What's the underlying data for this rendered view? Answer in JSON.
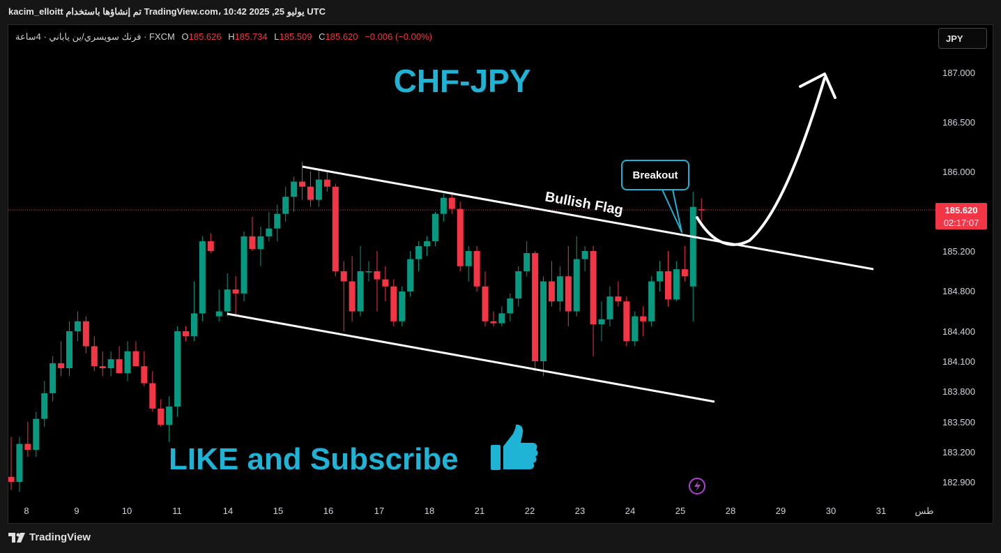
{
  "header": {
    "publish_info": "kacim_elloitt تم إنشاؤها باستخدام TradingView.com، 10:42 2025 ,25 يوليو UTC"
  },
  "legend": {
    "symbol": "فرنك سويسري/ين ياباني · 4ساعة · FXCM",
    "open_label": "O",
    "open": "185.626",
    "high_label": "H",
    "high": "185.734",
    "low_label": "L",
    "low": "185.509",
    "close_label": "C",
    "close": "185.620",
    "change": "−0.006 (−0.00%)"
  },
  "currency_button": "JPY",
  "price_axis": {
    "ticks": [
      "187.000",
      "186.500",
      "186.000",
      "185.200",
      "184.800",
      "184.400",
      "184.100",
      "183.800",
      "183.500",
      "183.200",
      "182.900"
    ],
    "current_price": "185.620",
    "countdown": "02:17:07"
  },
  "time_axis": {
    "ticks": [
      "8",
      "9",
      "10",
      "11",
      "14",
      "15",
      "16",
      "17",
      "18",
      "21",
      "22",
      "23",
      "24",
      "25",
      "28",
      "29",
      "30",
      "31",
      "طس"
    ]
  },
  "annotations": {
    "title": "CHF-JPY",
    "pattern": "Bullish Flag",
    "callout": "Breakout",
    "cta": "LIKE and Subscribe"
  },
  "footer": {
    "brand": "TradingView"
  },
  "colors": {
    "up": "#089981",
    "down": "#f23645",
    "accent": "#1fb3d5",
    "background": "#000000"
  },
  "chart_data": {
    "type": "candlestick",
    "symbol": "CHF/JPY",
    "timeframe": "4H",
    "yaxis_ticks": [
      187.0,
      186.5,
      186.0,
      185.2,
      184.8,
      184.4,
      184.1,
      183.8,
      183.5,
      183.2,
      182.9
    ],
    "current_price": 185.62,
    "candles": [
      {
        "o": 182.95,
        "h": 183.35,
        "l": 182.82,
        "c": 182.9
      },
      {
        "o": 182.9,
        "h": 183.35,
        "l": 182.8,
        "c": 183.28
      },
      {
        "o": 183.28,
        "h": 183.5,
        "l": 183.15,
        "c": 183.22
      },
      {
        "o": 183.22,
        "h": 183.6,
        "l": 183.15,
        "c": 183.53
      },
      {
        "o": 183.53,
        "h": 183.9,
        "l": 183.45,
        "c": 183.78
      },
      {
        "o": 183.78,
        "h": 184.15,
        "l": 183.7,
        "c": 184.08
      },
      {
        "o": 184.08,
        "h": 184.3,
        "l": 183.95,
        "c": 184.03
      },
      {
        "o": 184.03,
        "h": 184.5,
        "l": 183.95,
        "c": 184.4
      },
      {
        "o": 184.4,
        "h": 184.6,
        "l": 184.3,
        "c": 184.5
      },
      {
        "o": 184.5,
        "h": 184.55,
        "l": 184.18,
        "c": 184.25
      },
      {
        "o": 184.25,
        "h": 184.35,
        "l": 184.0,
        "c": 184.05
      },
      {
        "o": 184.05,
        "h": 184.2,
        "l": 183.95,
        "c": 184.03
      },
      {
        "o": 184.03,
        "h": 184.2,
        "l": 183.95,
        "c": 184.12
      },
      {
        "o": 184.12,
        "h": 184.25,
        "l": 183.98,
        "c": 183.98
      },
      {
        "o": 183.98,
        "h": 184.3,
        "l": 183.9,
        "c": 184.2
      },
      {
        "o": 184.2,
        "h": 184.3,
        "l": 184.05,
        "c": 184.05
      },
      {
        "o": 184.05,
        "h": 184.2,
        "l": 183.85,
        "c": 183.88
      },
      {
        "o": 183.88,
        "h": 184.0,
        "l": 183.6,
        "c": 183.63
      },
      {
        "o": 183.63,
        "h": 183.72,
        "l": 183.45,
        "c": 183.47
      },
      {
        "o": 183.47,
        "h": 183.75,
        "l": 183.3,
        "c": 183.65
      },
      {
        "o": 183.65,
        "h": 184.45,
        "l": 183.55,
        "c": 184.4
      },
      {
        "o": 184.4,
        "h": 184.45,
        "l": 184.3,
        "c": 184.35
      },
      {
        "o": 184.35,
        "h": 184.9,
        "l": 184.3,
        "c": 184.58
      },
      {
        "o": 184.58,
        "h": 185.35,
        "l": 184.5,
        "c": 185.3
      },
      {
        "o": 185.3,
        "h": 185.38,
        "l": 185.18,
        "c": 185.2
      },
      {
        "o": 184.55,
        "h": 184.82,
        "l": 184.5,
        "c": 184.6
      },
      {
        "o": 184.6,
        "h": 184.98,
        "l": 184.55,
        "c": 184.82
      },
      {
        "o": 184.82,
        "h": 184.95,
        "l": 184.55,
        "c": 184.78
      },
      {
        "o": 184.78,
        "h": 185.4,
        "l": 184.7,
        "c": 185.35
      },
      {
        "o": 185.35,
        "h": 185.55,
        "l": 185.2,
        "c": 185.22
      },
      {
        "o": 185.22,
        "h": 185.45,
        "l": 185.05,
        "c": 185.35
      },
      {
        "o": 185.35,
        "h": 185.6,
        "l": 185.3,
        "c": 185.43
      },
      {
        "o": 185.43,
        "h": 185.67,
        "l": 185.3,
        "c": 185.58
      },
      {
        "o": 185.58,
        "h": 185.85,
        "l": 185.5,
        "c": 185.75
      },
      {
        "o": 185.75,
        "h": 185.95,
        "l": 185.6,
        "c": 185.9
      },
      {
        "o": 185.9,
        "h": 186.1,
        "l": 185.72,
        "c": 185.85
      },
      {
        "o": 185.85,
        "h": 186.0,
        "l": 185.65,
        "c": 185.72
      },
      {
        "o": 185.72,
        "h": 186.02,
        "l": 185.65,
        "c": 185.92
      },
      {
        "o": 185.92,
        "h": 186.0,
        "l": 185.8,
        "c": 185.85
      },
      {
        "o": 185.85,
        "h": 185.88,
        "l": 184.95,
        "c": 185.0
      },
      {
        "o": 185.0,
        "h": 185.1,
        "l": 184.4,
        "c": 184.9
      },
      {
        "o": 184.9,
        "h": 185.15,
        "l": 184.5,
        "c": 184.6
      },
      {
        "o": 184.6,
        "h": 185.25,
        "l": 184.55,
        "c": 185.0
      },
      {
        "o": 185.0,
        "h": 185.1,
        "l": 184.9,
        "c": 185.0
      },
      {
        "o": 185.0,
        "h": 185.2,
        "l": 184.6,
        "c": 184.92
      },
      {
        "o": 184.92,
        "h": 185.05,
        "l": 184.7,
        "c": 184.85
      },
      {
        "o": 184.85,
        "h": 184.92,
        "l": 184.45,
        "c": 184.5
      },
      {
        "o": 184.5,
        "h": 184.85,
        "l": 184.45,
        "c": 184.8
      },
      {
        "o": 184.8,
        "h": 185.2,
        "l": 184.75,
        "c": 185.12
      },
      {
        "o": 185.12,
        "h": 185.3,
        "l": 185.0,
        "c": 185.25
      },
      {
        "o": 185.25,
        "h": 185.35,
        "l": 185.15,
        "c": 185.3
      },
      {
        "o": 185.3,
        "h": 185.6,
        "l": 185.25,
        "c": 185.58
      },
      {
        "o": 185.58,
        "h": 185.78,
        "l": 185.5,
        "c": 185.74
      },
      {
        "o": 185.74,
        "h": 185.8,
        "l": 185.58,
        "c": 185.63
      },
      {
        "o": 185.63,
        "h": 185.7,
        "l": 185.0,
        "c": 185.05
      },
      {
        "o": 185.05,
        "h": 185.25,
        "l": 184.9,
        "c": 185.2
      },
      {
        "o": 185.2,
        "h": 185.25,
        "l": 184.8,
        "c": 184.85
      },
      {
        "o": 184.85,
        "h": 185.0,
        "l": 184.45,
        "c": 184.5
      },
      {
        "o": 184.5,
        "h": 184.6,
        "l": 184.45,
        "c": 184.48
      },
      {
        "o": 184.48,
        "h": 184.65,
        "l": 184.45,
        "c": 184.58
      },
      {
        "o": 184.58,
        "h": 184.78,
        "l": 184.5,
        "c": 184.73
      },
      {
        "o": 184.73,
        "h": 185.05,
        "l": 184.65,
        "c": 185.0
      },
      {
        "o": 185.0,
        "h": 185.3,
        "l": 184.95,
        "c": 185.18
      },
      {
        "o": 185.18,
        "h": 185.2,
        "l": 184.0,
        "c": 184.1
      },
      {
        "o": 184.1,
        "h": 184.95,
        "l": 183.95,
        "c": 184.9
      },
      {
        "o": 184.9,
        "h": 185.1,
        "l": 184.65,
        "c": 184.7
      },
      {
        "o": 184.7,
        "h": 185.05,
        "l": 184.6,
        "c": 184.95
      },
      {
        "o": 184.95,
        "h": 185.25,
        "l": 184.45,
        "c": 184.6
      },
      {
        "o": 184.6,
        "h": 185.35,
        "l": 184.55,
        "c": 185.12
      },
      {
        "o": 185.12,
        "h": 185.25,
        "l": 185.0,
        "c": 185.2
      },
      {
        "o": 185.2,
        "h": 185.25,
        "l": 184.15,
        "c": 184.47
      },
      {
        "o": 184.47,
        "h": 184.7,
        "l": 184.3,
        "c": 184.52
      },
      {
        "o": 184.52,
        "h": 184.85,
        "l": 184.45,
        "c": 184.75
      },
      {
        "o": 184.75,
        "h": 184.9,
        "l": 184.65,
        "c": 184.7
      },
      {
        "o": 184.7,
        "h": 184.75,
        "l": 184.25,
        "c": 184.3
      },
      {
        "o": 184.3,
        "h": 184.6,
        "l": 184.25,
        "c": 184.55
      },
      {
        "o": 184.55,
        "h": 184.65,
        "l": 184.35,
        "c": 184.5
      },
      {
        "o": 184.5,
        "h": 184.95,
        "l": 184.45,
        "c": 184.9
      },
      {
        "o": 184.9,
        "h": 185.1,
        "l": 184.8,
        "c": 185.0
      },
      {
        "o": 185.0,
        "h": 185.2,
        "l": 184.65,
        "c": 184.72
      },
      {
        "o": 184.72,
        "h": 185.1,
        "l": 184.7,
        "c": 185.02
      },
      {
        "o": 185.02,
        "h": 185.25,
        "l": 184.9,
        "c": 184.95
      },
      {
        "o": 184.85,
        "h": 185.8,
        "l": 184.5,
        "c": 185.65
      },
      {
        "o": 185.626,
        "h": 185.734,
        "l": 185.509,
        "c": 185.62
      }
    ],
    "trendlines": [
      {
        "name": "Bullish Flag upper",
        "from": {
          "bar": 36,
          "price": 186.05
        },
        "to": {
          "bar": 103,
          "price": 185.0
        }
      },
      {
        "name": "Bullish Flag lower",
        "from": {
          "bar": 25,
          "price": 184.57
        },
        "to": {
          "bar": 84,
          "price": 183.73
        }
      }
    ],
    "projection": {
      "from": {
        "bar": 82,
        "price": 185.62
      },
      "dip": {
        "bar": 86,
        "price": 185.25
      },
      "target": {
        "bar": 96,
        "price": 187.0
      }
    },
    "grid": false,
    "legend_placement": "top-left"
  }
}
